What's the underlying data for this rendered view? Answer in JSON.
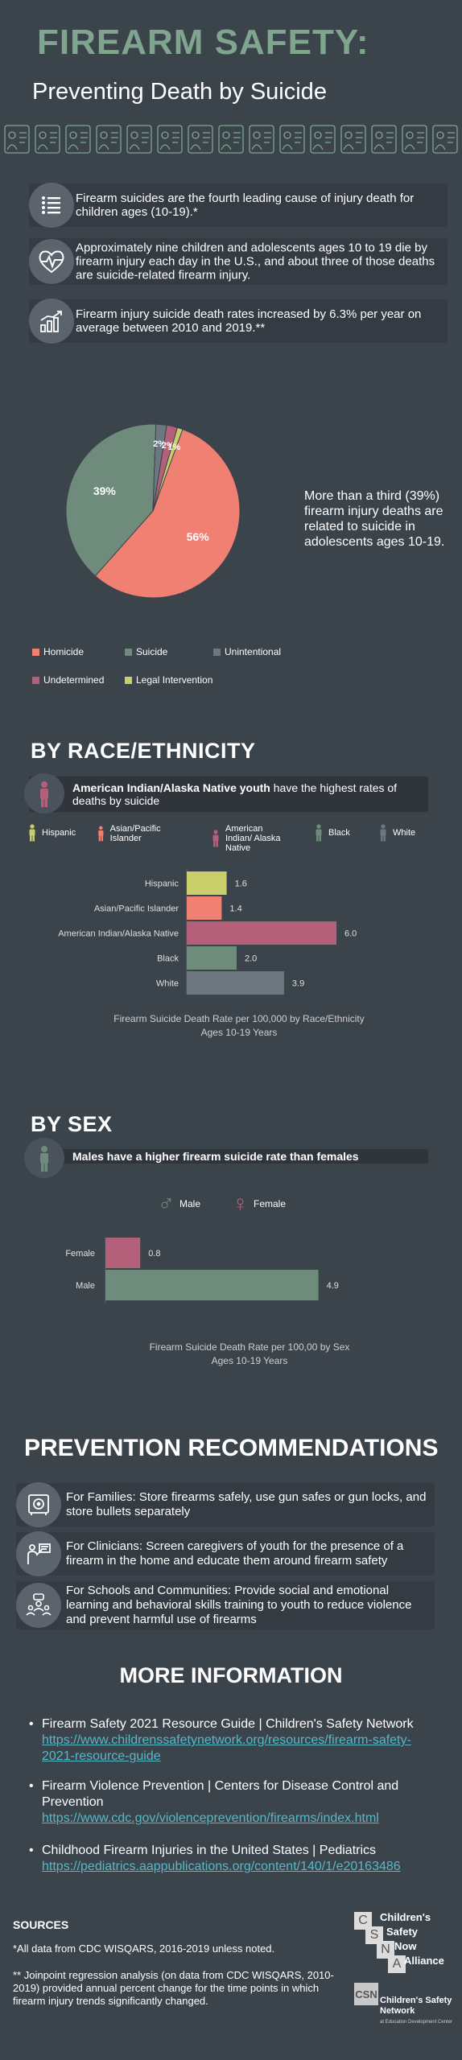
{
  "header": {
    "title": "FIREARM SAFETY:",
    "subtitle": "Preventing Death by Suicide"
  },
  "facts": [
    {
      "icon": "list-icon",
      "text": "Firearm suicides are the fourth leading cause of injury death for children ages (10-19).*"
    },
    {
      "icon": "heartbeat-icon",
      "text": "Approximately nine children and adolescents ages 10 to 19 die by firearm injury each day in the U.S., and about three of those deaths are suicide-related firearm injury."
    },
    {
      "icon": "rising-chart-icon",
      "text": "Firearm injury suicide death rates increased by 6.3% per year on average between 2010 and 2019.**"
    }
  ],
  "pie": {
    "note": "More than a third (39%) firearm injury deaths are related to suicide in adolescents ages 10-19.",
    "chart_data": {
      "type": "pie",
      "slices": [
        {
          "label": "Homicide",
          "value": 56,
          "display": "56%",
          "color": "#f08072"
        },
        {
          "label": "Suicide",
          "value": 39,
          "display": "39%",
          "color": "#6e8b7c"
        },
        {
          "label": "Unintentional",
          "value": 2,
          "display": "2%",
          "color": "#6c7780"
        },
        {
          "label": "Undetermined",
          "value": 2,
          "display": "2%",
          "color": "#b5607a"
        },
        {
          "label": "Legal Intervention",
          "value": 1,
          "display": "1%",
          "color": "#c8cf6a"
        }
      ]
    },
    "legend": [
      {
        "label": "Homicide",
        "color": "#f08072"
      },
      {
        "label": "Suicide",
        "color": "#6e8b7c"
      },
      {
        "label": "Unintentional",
        "color": "#6c7780"
      },
      {
        "label": "Undetermined",
        "color": "#b5607a"
      },
      {
        "label": "Legal Intervention",
        "color": "#c8cf6a"
      }
    ]
  },
  "race": {
    "heading": "BY RACE/ETHNICITY",
    "banner_bold": "American Indian/Alaska Native youth",
    "banner_rest": " have the highest rates of deaths by suicide",
    "legend": [
      {
        "label": "Hispanic",
        "color": "#c8cf6a"
      },
      {
        "label": "Asian/Pacific Islander",
        "color": "#f08072"
      },
      {
        "label": "American Indian/ Alaska Native",
        "color": "#b5607a"
      },
      {
        "label": "Black",
        "color": "#6e8b7c"
      },
      {
        "label": "White",
        "color": "#6c7780"
      }
    ],
    "chart_data": {
      "type": "bar",
      "orientation": "horizontal",
      "categories": [
        "Hispanic",
        "Asian/Pacific Islander",
        "American Indian/Alaska Native",
        "Black",
        "White"
      ],
      "values": [
        1.6,
        1.4,
        6.0,
        2.0,
        3.9
      ],
      "value_labels": [
        "1.6",
        "1.4",
        "6.0",
        "2.0",
        "3.9"
      ],
      "colors": [
        "#c8cf6a",
        "#f08072",
        "#b5607a",
        "#6e8b7c",
        "#6c7780"
      ],
      "title": "Firearm Suicide Death Rate per 100,000 by Race/Ethnicity",
      "subtitle": "Ages 10-19 Years"
    }
  },
  "sex": {
    "heading": "BY SEX",
    "banner": "Males have a higher firearm suicide rate than females",
    "legend": [
      {
        "label": "Male",
        "symbol": "♂",
        "color": "#6e8b7c"
      },
      {
        "label": "Female",
        "symbol": "♀",
        "color": "#b5607a"
      }
    ],
    "chart_data": {
      "type": "bar",
      "orientation": "horizontal",
      "categories": [
        "Female",
        "Male"
      ],
      "values": [
        0.8,
        4.9
      ],
      "value_labels": [
        "0.8",
        "4.9"
      ],
      "colors": [
        "#b5607a",
        "#6e8b7c"
      ],
      "title": "Firearm Suicide Death Rate per 100,00 by Sex",
      "subtitle": "Ages 10-19 Years"
    }
  },
  "prevention": {
    "heading": "PREVENTION RECOMMENDATIONS",
    "items": [
      {
        "icon": "safe-icon",
        "text": "For Families: Store firearms safely, use gun safes or gun locks, and store bullets separately"
      },
      {
        "icon": "clinician-icon",
        "text": "For Clinicians:  Screen caregivers of youth for the presence of a firearm in the home and educate them around firearm safety"
      },
      {
        "icon": "community-icon",
        "text": "For Schools and Communities: Provide social and emotional learning and behavioral skills training to youth to reduce violence and prevent harmful use of firearms"
      }
    ]
  },
  "more_info": {
    "heading": "MORE INFORMATION",
    "items": [
      {
        "text": "Firearm Safety 2021 Resource Guide | Children's Safety Network",
        "url": "https://www.childrenssafetynetwork.org/resources/firearm-safety-2021-resource-guide"
      },
      {
        "text": "Firearm Violence Prevention | Centers for Disease Control and Prevention",
        "url": "https://www.cdc.gov/violenceprevention/firearms/index.html"
      },
      {
        "text": "Childhood Firearm Injuries in the United States | Pediatrics",
        "url": "https://pediatrics.aappublications.org/content/140/1/e20163486"
      }
    ]
  },
  "sources": {
    "heading": "SOURCES",
    "note1": "*All data from  CDC WISQARS, 2016-2019 unless noted.",
    "note2": "**  Joinpoint regression analysis (on data from CDC WISQARS, 2010-2019) provided annual percent change for the time points in which firearm injury trends significantly changed."
  },
  "logos": {
    "csna_letters": [
      "C",
      "S",
      "N",
      "A"
    ],
    "csna_words": [
      "Children's",
      "Safety",
      "Now",
      "Alliance"
    ],
    "csn_mark": "CSN",
    "csn_name": "Children's Safety Network",
    "csn_sub": "at Education Development Center"
  }
}
